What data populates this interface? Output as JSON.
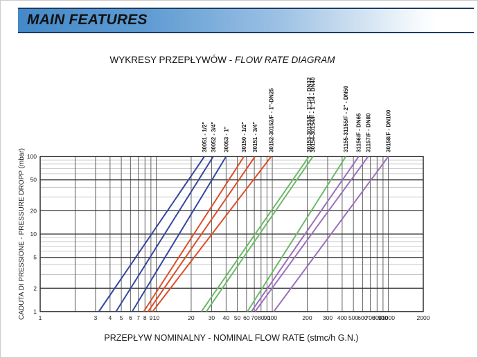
{
  "header": {
    "title": "MAIN FEATURES"
  },
  "chart_title": {
    "regular": "WYKRESY PRZEPŁYWÓW - ",
    "italic": "FLOW RATE DIAGRAM"
  },
  "chart_data": {
    "type": "line",
    "title": "WYKRESY PRZEPŁYWÓW - FLOW RATE DIAGRAM",
    "xlabel": "PRZEPŁYW NOMINALNY - NOMINAL FLOW RATE (stmc/h G.N.)",
    "ylabel": "CADUTA DI PRESSIONE - PRESSURE DROPP (mbar)",
    "x_scale": "log",
    "y_scale": "log",
    "xlim": [
      1,
      2000
    ],
    "ylim": [
      1,
      100
    ],
    "grid": true,
    "legend_position": "labels-rotated-above-plot",
    "x_ticks": [
      {
        "v": 1,
        "l": "1"
      },
      {
        "v": 2,
        "l": ""
      },
      {
        "v": 3,
        "l": "3"
      },
      {
        "v": 4,
        "l": "4"
      },
      {
        "v": 5,
        "l": "5"
      },
      {
        "v": 6,
        "l": "6"
      },
      {
        "v": 7,
        "l": "7"
      },
      {
        "v": 8,
        "l": "8"
      },
      {
        "v": 9,
        "l": "9"
      },
      {
        "v": 10,
        "l": "10"
      },
      {
        "v": 20,
        "l": "20"
      },
      {
        "v": 30,
        "l": "30"
      },
      {
        "v": 40,
        "l": "40"
      },
      {
        "v": 50,
        "l": "50"
      },
      {
        "v": 60,
        "l": "60"
      },
      {
        "v": 70,
        "l": "70"
      },
      {
        "v": 80,
        "l": "80"
      },
      {
        "v": 90,
        "l": "90"
      },
      {
        "v": 100,
        "l": "100"
      },
      {
        "v": 200,
        "l": "200"
      },
      {
        "v": 300,
        "l": "300"
      },
      {
        "v": 400,
        "l": "400"
      },
      {
        "v": 500,
        "l": "500"
      },
      {
        "v": 600,
        "l": "600"
      },
      {
        "v": 700,
        "l": "700"
      },
      {
        "v": 800,
        "l": "800"
      },
      {
        "v": 900,
        "l": "900"
      },
      {
        "v": 1000,
        "l": "1000"
      },
      {
        "v": 2000,
        "l": "2000"
      }
    ],
    "y_major_ticks": [
      1,
      2,
      5,
      10,
      20,
      50,
      100
    ],
    "y_minor_gridlines": [
      3,
      4,
      6,
      7,
      8,
      9,
      30,
      40,
      60,
      70,
      80,
      90
    ],
    "colors": {
      "blue": "#34479e",
      "red": "#dc4e27",
      "green": "#6db968",
      "purple": "#9b70ba"
    },
    "series": [
      {
        "label": "30051 - 1/2\"",
        "color": "blue",
        "points": [
          [
            3.2,
            1
          ],
          [
            26,
            100
          ]
        ]
      },
      {
        "label": "30052 - 3/4\"",
        "color": "blue",
        "points": [
          [
            4.5,
            1
          ],
          [
            31,
            100
          ]
        ]
      },
      {
        "label": "30053 - 1\"",
        "color": "blue",
        "points": [
          [
            6.2,
            1
          ],
          [
            40,
            100
          ]
        ]
      },
      {
        "label": "30150 - 1/2\"",
        "color": "red",
        "points": [
          [
            7.8,
            1
          ],
          [
            57,
            100
          ]
        ]
      },
      {
        "label": "30151 - 3/4\"",
        "color": "red",
        "points": [
          [
            8.5,
            1
          ],
          [
            71,
            100
          ]
        ]
      },
      {
        "label": "30152-30152/F - 1\"-DN25",
        "color": "red",
        "points": [
          [
            9.3,
            1
          ],
          [
            98,
            100
          ]
        ]
      },
      {
        "label": "30153-30153/F - 1\"1/4 - DN32",
        "color": "green",
        "points": [
          [
            24.5,
            1
          ],
          [
            207,
            100
          ]
        ]
      },
      {
        "label": "30154-30154/F - 1\"1/4 - DN40",
        "color": "green",
        "points": [
          [
            27,
            1
          ],
          [
            224,
            100
          ]
        ]
      },
      {
        "label": "31155-31155/F - 2\" - DN50",
        "color": "green",
        "points": [
          [
            61,
            1
          ],
          [
            430,
            100
          ]
        ]
      },
      {
        "label": "31156/F - DN65",
        "color": "purple",
        "points": [
          [
            66,
            1
          ],
          [
            555,
            100
          ]
        ]
      },
      {
        "label": "31157/F - DN80",
        "color": "purple",
        "points": [
          [
            71,
            1
          ],
          [
            670,
            100
          ]
        ]
      },
      {
        "label": "30158/F - DN100",
        "color": "purple",
        "points": [
          [
            103,
            1
          ],
          [
            1000,
            100
          ]
        ]
      }
    ]
  }
}
